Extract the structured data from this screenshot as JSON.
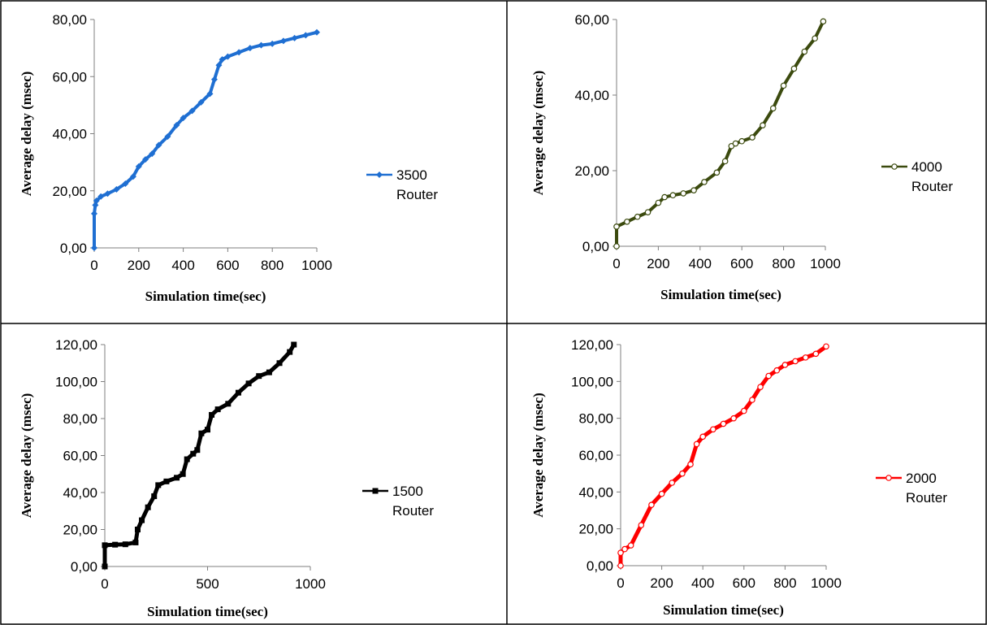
{
  "chart_data": [
    {
      "type": "line",
      "xlabel": "Simulation time(sec)",
      "ylabel": "Average delay (msec)",
      "xlim": [
        0,
        1000
      ],
      "ylim": [
        0,
        80
      ],
      "xticks": [
        "0",
        "200",
        "400",
        "600",
        "800",
        "1000"
      ],
      "yticks": [
        "0,00",
        "20,00",
        "40,00",
        "60,00",
        "80,00"
      ],
      "grid": false,
      "legend_position": "right",
      "series": [
        {
          "name": "3500 Router",
          "legend_lines": [
            "3500",
            "Router"
          ],
          "color": "#1f6fd2",
          "marker": "diamond",
          "x": [
            0,
            0,
            5,
            10,
            30,
            60,
            100,
            140,
            175,
            200,
            230,
            260,
            290,
            330,
            370,
            400,
            440,
            480,
            520,
            540,
            560,
            575,
            600,
            650,
            700,
            750,
            800,
            850,
            900,
            950,
            1000
          ],
          "y": [
            0,
            12,
            15,
            16.5,
            18,
            19,
            20.5,
            22.5,
            25,
            28.5,
            31,
            33,
            36,
            39,
            43,
            45.5,
            48,
            51,
            54,
            59,
            64,
            66,
            67,
            68.5,
            70,
            71,
            71.5,
            72.5,
            73.5,
            74.5,
            75.5
          ]
        }
      ]
    },
    {
      "type": "line",
      "xlabel": "Simulation time(sec)",
      "ylabel": "Average delay (msec)",
      "xlim": [
        0,
        1000
      ],
      "ylim": [
        0,
        60
      ],
      "xticks": [
        "0",
        "200",
        "400",
        "600",
        "800",
        "1000"
      ],
      "yticks": [
        "0,00",
        "20,00",
        "40,00",
        "60,00"
      ],
      "grid": false,
      "legend_position": "right",
      "series": [
        {
          "name": "4000 Router",
          "legend_lines": [
            "4000",
            "Router"
          ],
          "color": "#3b4a0e",
          "marker": "circle",
          "x": [
            0,
            0,
            50,
            100,
            150,
            200,
            230,
            270,
            320,
            370,
            420,
            480,
            520,
            550,
            570,
            600,
            650,
            700,
            750,
            800,
            850,
            900,
            950,
            990
          ],
          "y": [
            0,
            5.2,
            6.5,
            7.8,
            9,
            11.5,
            13,
            13.5,
            14,
            14.8,
            17,
            19.5,
            22.5,
            26.5,
            27.2,
            27.8,
            28.8,
            32,
            36.5,
            42.5,
            47,
            51.5,
            55,
            59.5
          ]
        }
      ]
    },
    {
      "type": "line",
      "xlabel": "Simulation time(sec)",
      "ylabel": "Average delay (msec)",
      "xlim": [
        0,
        1000
      ],
      "ylim": [
        0,
        120
      ],
      "xticks": [
        "0",
        "500",
        "1000"
      ],
      "yticks": [
        "0,00",
        "20,00",
        "40,00",
        "60,00",
        "80,00",
        "100,00",
        "120,00"
      ],
      "grid": false,
      "legend_position": "right",
      "series": [
        {
          "name": "1500 Router",
          "legend_lines": [
            "1500",
            "Router"
          ],
          "color": "#000000",
          "marker": "square",
          "x": [
            0,
            0,
            50,
            100,
            150,
            160,
            180,
            210,
            240,
            260,
            300,
            350,
            380,
            400,
            430,
            450,
            470,
            500,
            520,
            550,
            600,
            650,
            700,
            750,
            800,
            850,
            900,
            920
          ],
          "y": [
            0,
            11.5,
            11.8,
            12,
            13,
            20,
            25,
            32,
            38,
            44,
            46,
            48,
            50,
            58,
            61,
            63,
            72,
            74,
            82,
            85,
            88,
            94,
            99,
            103,
            105,
            110,
            116,
            120
          ]
        }
      ]
    },
    {
      "type": "line",
      "xlabel": "Simulation time(sec)",
      "ylabel": "Average delay (msec)",
      "xlim": [
        0,
        1000
      ],
      "ylim": [
        0,
        120
      ],
      "xticks": [
        "0",
        "200",
        "400",
        "600",
        "800",
        "1000"
      ],
      "yticks": [
        "0,00",
        "20,00",
        "40,00",
        "60,00",
        "80,00",
        "100,00",
        "120,00"
      ],
      "grid": false,
      "legend_position": "right",
      "series": [
        {
          "name": "2000 Router",
          "legend_lines": [
            "2000",
            "Router"
          ],
          "color": "#ff0000",
          "marker": "circle",
          "x": [
            0,
            0,
            20,
            50,
            100,
            150,
            200,
            250,
            300,
            340,
            370,
            400,
            450,
            500,
            550,
            600,
            640,
            680,
            720,
            760,
            800,
            850,
            900,
            950,
            1000
          ],
          "y": [
            0,
            7,
            9,
            11,
            22,
            33,
            39,
            45,
            50,
            55,
            66,
            70,
            74,
            77,
            80,
            84,
            90,
            97,
            103,
            106,
            109,
            111,
            113,
            115,
            119
          ]
        }
      ]
    }
  ]
}
